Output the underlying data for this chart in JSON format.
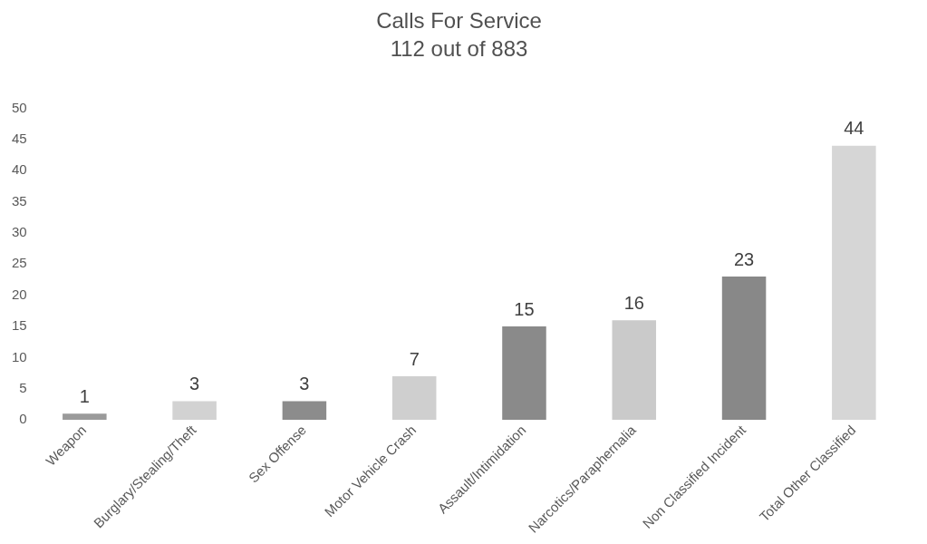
{
  "chart_data": {
    "type": "bar",
    "title": "Calls For Service",
    "subtitle": "112 out of 883",
    "categories": [
      "Weapon",
      "Burglary/Stealing/Theft",
      "Sex Offense",
      "Motor Vehicle Crash",
      "Assault/Intimidation",
      "Narcotics/Paraphernalia",
      "Non Classified Incident",
      "Total Other Classified"
    ],
    "values": [
      1,
      3,
      3,
      7,
      15,
      16,
      23,
      44
    ],
    "colors": [
      "#9a9a9a",
      "#d2d2d2",
      "#8c8c8c",
      "#cfcfcf",
      "#8a8a8a",
      "#cacaca",
      "#888888",
      "#d6d6d6"
    ],
    "ylim": [
      0,
      50
    ],
    "yticks": [
      0,
      5,
      10,
      15,
      20,
      25,
      30,
      35,
      40,
      45,
      50
    ],
    "grid": false,
    "legend": false,
    "data_labels": true
  }
}
